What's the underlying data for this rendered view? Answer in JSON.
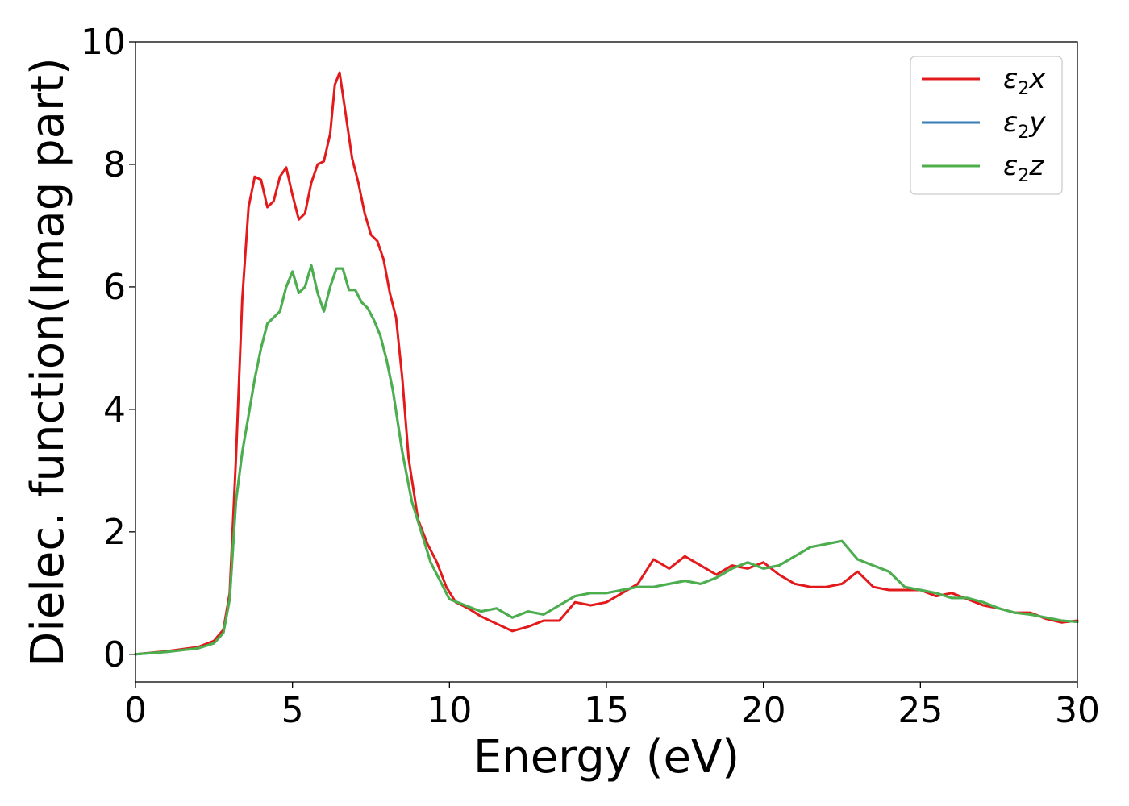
{
  "chart_data": {
    "type": "line",
    "title": "",
    "xlabel": "Energy (eV)",
    "ylabel": "Dielec. function(Imag part)",
    "xlim": [
      0,
      30
    ],
    "ylim": [
      -0.45,
      10
    ],
    "xticks": [
      0,
      5,
      10,
      15,
      20,
      25,
      30
    ],
    "yticks": [
      0,
      2,
      4,
      6,
      8,
      10
    ],
    "grid": false,
    "legend_position": "top-right",
    "series": [
      {
        "name": "ε₂x",
        "legend_base": "ε",
        "legend_sub": "2",
        "legend_suffix": "x",
        "color": "#e31a1c",
        "x": [
          0,
          1,
          2,
          2.5,
          2.8,
          3.0,
          3.2,
          3.4,
          3.6,
          3.8,
          4.0,
          4.2,
          4.4,
          4.6,
          4.8,
          5.0,
          5.2,
          5.4,
          5.6,
          5.8,
          6.0,
          6.2,
          6.35,
          6.5,
          6.7,
          6.9,
          7.1,
          7.3,
          7.5,
          7.7,
          7.9,
          8.1,
          8.3,
          8.5,
          8.7,
          9.0,
          9.3,
          9.6,
          9.9,
          10.2,
          10.6,
          11.0,
          11.5,
          12.0,
          12.5,
          13.0,
          13.5,
          14.0,
          14.5,
          15.0,
          15.5,
          16.0,
          16.5,
          17.0,
          17.5,
          18.0,
          18.5,
          19.0,
          19.5,
          20.0,
          20.5,
          21.0,
          21.5,
          22.0,
          22.5,
          23.0,
          23.5,
          24.0,
          24.5,
          25.0,
          25.5,
          26.0,
          26.5,
          27.0,
          27.5,
          28.0,
          28.5,
          29.0,
          29.5,
          30.0
        ],
        "values": [
          0,
          0.05,
          0.12,
          0.22,
          0.4,
          1.0,
          3.2,
          5.8,
          7.3,
          7.8,
          7.75,
          7.3,
          7.4,
          7.8,
          7.95,
          7.5,
          7.1,
          7.2,
          7.7,
          8.0,
          8.05,
          8.5,
          9.3,
          9.5,
          8.8,
          8.1,
          7.7,
          7.2,
          6.85,
          6.75,
          6.45,
          5.9,
          5.5,
          4.5,
          3.2,
          2.2,
          1.8,
          1.5,
          1.1,
          0.85,
          0.75,
          0.62,
          0.5,
          0.38,
          0.45,
          0.55,
          0.55,
          0.85,
          0.8,
          0.85,
          1.0,
          1.15,
          1.55,
          1.4,
          1.6,
          1.45,
          1.3,
          1.45,
          1.4,
          1.5,
          1.3,
          1.15,
          1.1,
          1.1,
          1.15,
          1.35,
          1.1,
          1.05,
          1.05,
          1.05,
          0.95,
          1.0,
          0.9,
          0.8,
          0.75,
          0.68,
          0.68,
          0.58,
          0.52,
          0.55
        ]
      },
      {
        "name": "ε₂y",
        "legend_base": "ε",
        "legend_sub": "2",
        "legend_suffix": "y",
        "color": "#377eb8",
        "x": [
          0,
          1,
          2,
          2.5,
          2.8,
          3.0,
          3.2,
          3.4,
          3.6,
          3.8,
          4.0,
          4.2,
          4.4,
          4.6,
          4.8,
          5.0,
          5.2,
          5.4,
          5.6,
          5.8,
          6.0,
          6.2,
          6.4,
          6.6,
          6.8,
          7.0,
          7.2,
          7.4,
          7.6,
          7.8,
          8.0,
          8.2,
          8.5,
          8.8,
          9.1,
          9.4,
          9.7,
          10.0,
          10.5,
          11.0,
          11.5,
          12.0,
          12.5,
          13.0,
          13.5,
          14.0,
          14.5,
          15.0,
          15.5,
          16.0,
          16.5,
          17.0,
          17.5,
          18.0,
          18.5,
          19.0,
          19.5,
          20.0,
          20.5,
          21.0,
          21.5,
          22.0,
          22.5,
          23.0,
          23.5,
          24.0,
          24.5,
          25.0,
          25.5,
          26.0,
          26.5,
          27.0,
          27.5,
          28.0,
          28.5,
          29.0,
          29.5,
          30.0
        ],
        "values": [
          0,
          0.04,
          0.1,
          0.18,
          0.35,
          0.9,
          2.5,
          3.3,
          3.9,
          4.5,
          5.0,
          5.4,
          5.5,
          5.6,
          6.0,
          6.25,
          5.9,
          6.0,
          6.35,
          5.9,
          5.6,
          6.0,
          6.3,
          6.3,
          5.95,
          5.95,
          5.75,
          5.65,
          5.45,
          5.2,
          4.8,
          4.3,
          3.3,
          2.5,
          2.0,
          1.5,
          1.2,
          0.9,
          0.8,
          0.7,
          0.75,
          0.6,
          0.7,
          0.65,
          0.8,
          0.95,
          1.0,
          1.0,
          1.05,
          1.1,
          1.1,
          1.15,
          1.2,
          1.15,
          1.25,
          1.4,
          1.5,
          1.4,
          1.45,
          1.6,
          1.75,
          1.8,
          1.85,
          1.55,
          1.45,
          1.35,
          1.1,
          1.05,
          1.0,
          0.92,
          0.92,
          0.85,
          0.75,
          0.68,
          0.65,
          0.6,
          0.55,
          0.53
        ]
      },
      {
        "name": "ε₂z",
        "legend_base": "ε",
        "legend_sub": "2",
        "legend_suffix": "z",
        "color": "#4daf4a",
        "x": [
          0,
          1,
          2,
          2.5,
          2.8,
          3.0,
          3.2,
          3.4,
          3.6,
          3.8,
          4.0,
          4.2,
          4.4,
          4.6,
          4.8,
          5.0,
          5.2,
          5.4,
          5.6,
          5.8,
          6.0,
          6.2,
          6.4,
          6.6,
          6.8,
          7.0,
          7.2,
          7.4,
          7.6,
          7.8,
          8.0,
          8.2,
          8.5,
          8.8,
          9.1,
          9.4,
          9.7,
          10.0,
          10.5,
          11.0,
          11.5,
          12.0,
          12.5,
          13.0,
          13.5,
          14.0,
          14.5,
          15.0,
          15.5,
          16.0,
          16.5,
          17.0,
          17.5,
          18.0,
          18.5,
          19.0,
          19.5,
          20.0,
          20.5,
          21.0,
          21.5,
          22.0,
          22.5,
          23.0,
          23.5,
          24.0,
          24.5,
          25.0,
          25.5,
          26.0,
          26.5,
          27.0,
          27.5,
          28.0,
          28.5,
          29.0,
          29.5,
          30.0
        ],
        "values": [
          0,
          0.04,
          0.1,
          0.18,
          0.35,
          0.9,
          2.5,
          3.3,
          3.9,
          4.5,
          5.0,
          5.4,
          5.5,
          5.6,
          6.0,
          6.25,
          5.9,
          6.0,
          6.35,
          5.9,
          5.6,
          6.0,
          6.3,
          6.3,
          5.95,
          5.95,
          5.75,
          5.65,
          5.45,
          5.2,
          4.8,
          4.3,
          3.3,
          2.5,
          2.0,
          1.5,
          1.2,
          0.9,
          0.8,
          0.7,
          0.75,
          0.6,
          0.7,
          0.65,
          0.8,
          0.95,
          1.0,
          1.0,
          1.05,
          1.1,
          1.1,
          1.15,
          1.2,
          1.15,
          1.25,
          1.4,
          1.5,
          1.4,
          1.45,
          1.6,
          1.75,
          1.8,
          1.85,
          1.55,
          1.45,
          1.35,
          1.1,
          1.05,
          1.0,
          0.92,
          0.92,
          0.85,
          0.75,
          0.68,
          0.65,
          0.6,
          0.55,
          0.53
        ]
      }
    ]
  }
}
